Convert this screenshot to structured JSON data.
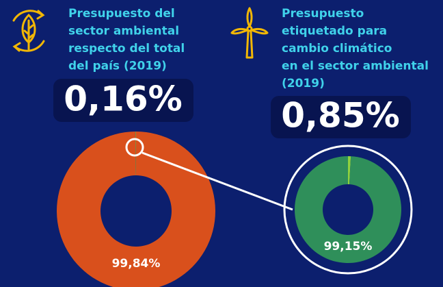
{
  "chart_data": [
    {
      "type": "pie",
      "title": [
        "Presupuesto del",
        "sector ambiental",
        "respecto del total",
        "del país (2019)"
      ],
      "values": [
        99.84,
        0.16
      ],
      "value_labels": [
        "99,84%",
        "0,16%"
      ],
      "colors": [
        "#d9501c",
        "#8c8a3c"
      ]
    },
    {
      "type": "pie",
      "title": [
        "Presupuesto",
        "etiquetado para",
        "cambio climático",
        "en el sector ambiental",
        "(2019)"
      ],
      "values": [
        0.85,
        99.15
      ],
      "value_labels": [
        "0,85%",
        "99,15%"
      ],
      "colors": [
        "#8fd13e",
        "#2f8f5a"
      ]
    }
  ]
}
